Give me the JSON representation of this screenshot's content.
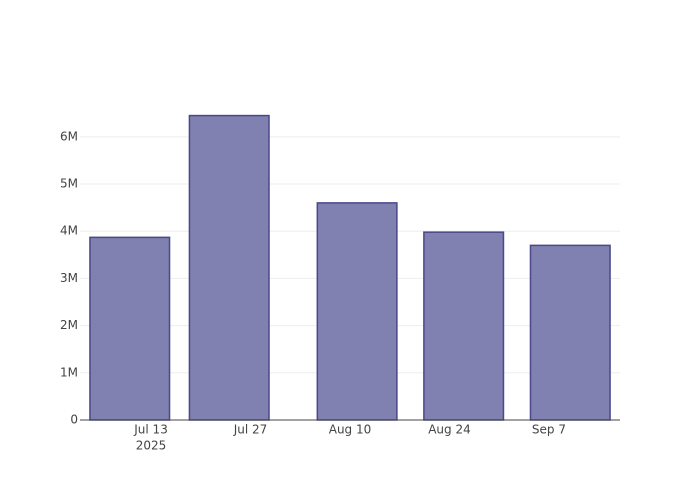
{
  "chart_data": {
    "type": "bar",
    "x": [
      "2025-07-10",
      "2025-07-24",
      "2025-08-11",
      "2025-08-26",
      "2025-09-10"
    ],
    "values": [
      3870000,
      6450000,
      4600000,
      3980000,
      3700000
    ],
    "color": "#8080b1",
    "line_color": "#48488a",
    "xlim": [
      "2025-07-03",
      "2025-09-17"
    ],
    "xticks": [
      {
        "value": "2025-07-13",
        "label": "Jul 13"
      },
      {
        "value": "2025-07-27",
        "label": "Jul 27"
      },
      {
        "value": "2025-08-10",
        "label": "Aug 10"
      },
      {
        "value": "2025-08-24",
        "label": "Aug 24"
      },
      {
        "value": "2025-09-07",
        "label": "Sep 7"
      }
    ],
    "x_year_label": "2025",
    "ylim": [
      0,
      6780000
    ],
    "yticks": [
      0,
      {
        "value": 1000000,
        "label": "1M"
      },
      {
        "value": 2000000,
        "label": "2M"
      },
      {
        "value": 3000000,
        "label": "3M"
      },
      {
        "value": 4000000,
        "label": "4M"
      },
      {
        "value": 5000000,
        "label": "5M"
      },
      {
        "value": 6000000,
        "label": "6M"
      }
    ],
    "grid": true
  }
}
